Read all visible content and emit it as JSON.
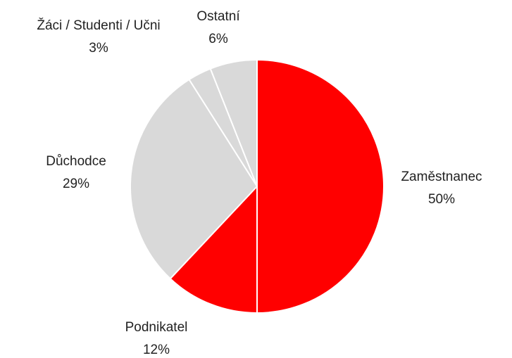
{
  "chart_data": {
    "type": "pie",
    "categories": [
      "Zaměstnanec",
      "Podnikatel",
      "Důchodce",
      "Žáci / Studenti / Učni",
      "Ostatní"
    ],
    "values": [
      50,
      12,
      29,
      3,
      6
    ],
    "value_labels": [
      "50%",
      "12%",
      "29%",
      "3%",
      "6%"
    ],
    "colors": [
      "#ff0000",
      "#ff0000",
      "#d9d9d9",
      "#d9d9d9",
      "#d9d9d9"
    ]
  }
}
